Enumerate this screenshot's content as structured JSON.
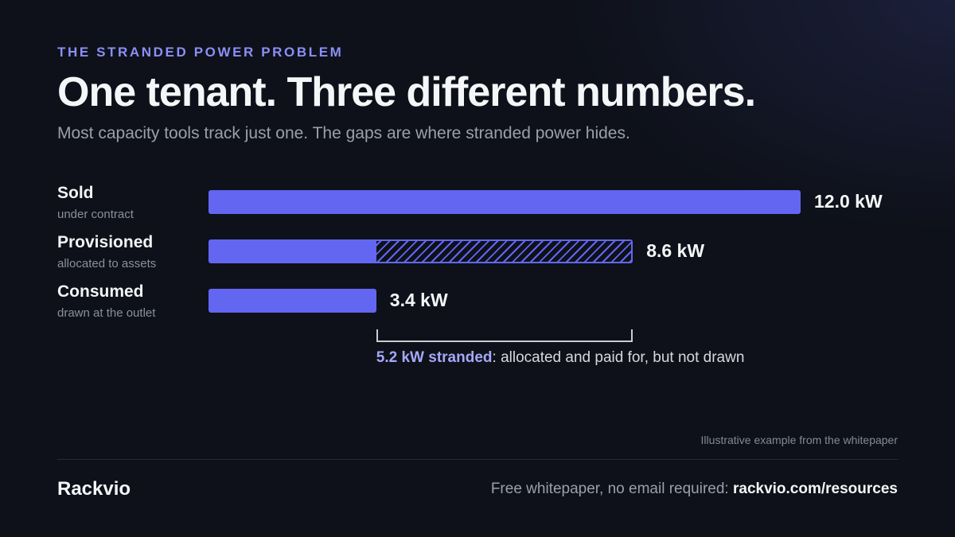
{
  "eyebrow": "THE STRANDED POWER PROBLEM",
  "title": "One tenant. Three different numbers.",
  "subtitle": "Most capacity tools track just one. The gaps are where stranded power hides.",
  "colors": {
    "bar": "#6366f1",
    "accent_text": "#8b8ff5",
    "background": "#0e1119"
  },
  "chart_data": {
    "type": "bar",
    "orientation": "horizontal",
    "unit": "kW",
    "categories": [
      "Sold",
      "Provisioned",
      "Consumed"
    ],
    "category_subtitles": [
      "under contract",
      "allocated to assets",
      "drawn at the outlet"
    ],
    "values": [
      12.0,
      8.6,
      3.4
    ],
    "value_labels": [
      "12.0 kW",
      "8.6 kW",
      "3.4 kW"
    ],
    "hatched_segment": {
      "category": "Provisioned",
      "from": 3.4,
      "to": 8.6
    },
    "annotation": {
      "from": 3.4,
      "to": 8.6,
      "highlight": "5.2 kW stranded",
      "text": ": allocated and paid for, but not drawn"
    }
  },
  "footnote": "Illustrative example from the whitepaper",
  "footer": {
    "brand": "Rackvio",
    "cta_text": "Free whitepaper, no email required: ",
    "cta_link": "rackvio.com/resources"
  }
}
